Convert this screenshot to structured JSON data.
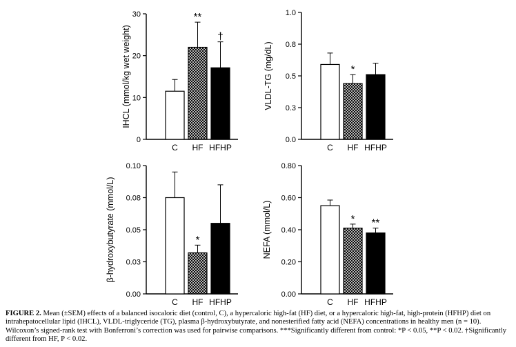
{
  "chart_data": [
    {
      "type": "bar",
      "categories": [
        "C",
        "HF",
        "HFHP"
      ],
      "series": [
        {
          "values": [
            11.5,
            22,
            17.1
          ],
          "errors": [
            2.8,
            6.0,
            6.2
          ]
        }
      ],
      "ylabel": "IHCL (mmol/kg wet weight)",
      "ylim": [
        0,
        30
      ],
      "yticks": [
        "0",
        "10",
        "20",
        "30"
      ],
      "annotations": [
        "",
        "**",
        "†"
      ]
    },
    {
      "type": "bar",
      "categories": [
        "C",
        "HF",
        "HFHP"
      ],
      "series": [
        {
          "values": [
            0.59,
            0.44,
            0.51
          ],
          "errors": [
            0.09,
            0.07,
            0.09
          ]
        }
      ],
      "ylabel": "VLDL-TG (mg/dL)",
      "ylim": [
        0,
        1.0
      ],
      "yticks": [
        "0.0",
        "0.3",
        "0.5",
        "0.8",
        "1.0"
      ],
      "annotations": [
        "",
        "*",
        ""
      ]
    },
    {
      "type": "bar",
      "categories": [
        "C",
        "HF",
        "HFHP"
      ],
      "series": [
        {
          "values": [
            0.075,
            0.032,
            0.055
          ],
          "errors": [
            0.02,
            0.006,
            0.03
          ]
        }
      ],
      "ylabel": "β-hydroxybutyrate (mmol/L)",
      "ylim": [
        0,
        0.1
      ],
      "yticks": [
        "0.00",
        "0.03",
        "0.05",
        "0.08",
        "0.10"
      ],
      "annotations": [
        "",
        "*",
        ""
      ]
    },
    {
      "type": "bar",
      "categories": [
        "C",
        "HF",
        "HFHP"
      ],
      "series": [
        {
          "values": [
            0.55,
            0.41,
            0.38
          ],
          "errors": [
            0.035,
            0.025,
            0.03
          ]
        }
      ],
      "ylabel": "NEFA (mmol/L)",
      "ylim": [
        0,
        0.8
      ],
      "yticks": [
        "0.00",
        "0.20",
        "0.40",
        "0.60",
        "0.80"
      ],
      "annotations": [
        "",
        "*",
        "**"
      ]
    }
  ],
  "colors": {
    "C": "#ffffff",
    "HF": "crosshatch",
    "HFHP": "#000000"
  },
  "caption": {
    "label": "FIGURE 2.",
    "text": " Mean (±SEM) effects of a balanced isocaloric diet (control, C), a hypercaloric high-fat (HF) diet, or a hypercaloric high-fat, high-protein (HFHP) diet on intrahepatocellular lipid (IHCL), VLDL-triglyceride (TG), plasma β-hydroxybutyrate, and nonesterified fatty acid (NEFA) concentrations in healthy men (n = 10). Wilcoxon’s signed-rank test with Bonferroni’s correction was used for pairwise comparisons. ***Significantly different from control: *P < 0.05, **P < 0.02. †Significantly different from HF, P < 0.02."
  }
}
